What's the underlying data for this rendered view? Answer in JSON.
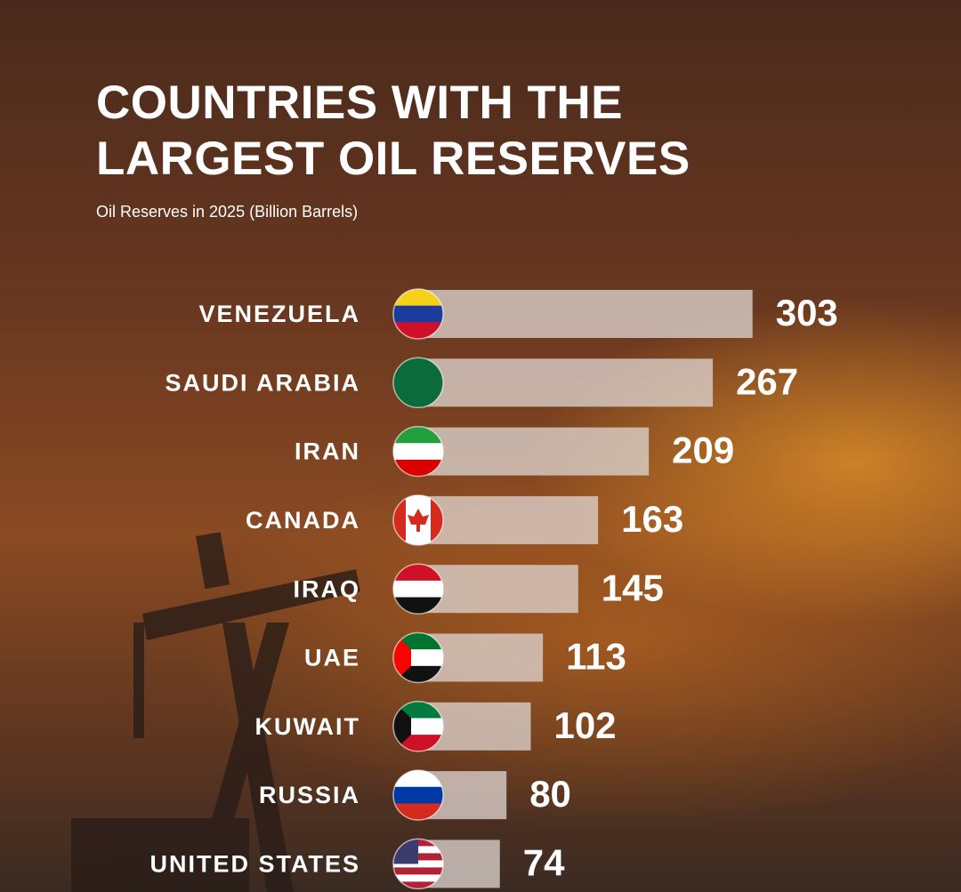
{
  "chart_data": {
    "type": "bar",
    "orientation": "horizontal",
    "title": "COUNTRIES WITH THE LARGEST OIL RESERVES",
    "subtitle": "Oil Reserves in 2025 (Billion Barrels)",
    "categories": [
      "VENEZUELA",
      "SAUDI ARABIA",
      "IRAN",
      "CANADA",
      "IRAQ",
      "UAE",
      "KUWAIT",
      "RUSSIA",
      "UNITED STATES"
    ],
    "values": [
      303,
      267,
      209,
      163,
      145,
      113,
      102,
      80,
      74
    ],
    "color": "#dcd2cd"
  }
}
